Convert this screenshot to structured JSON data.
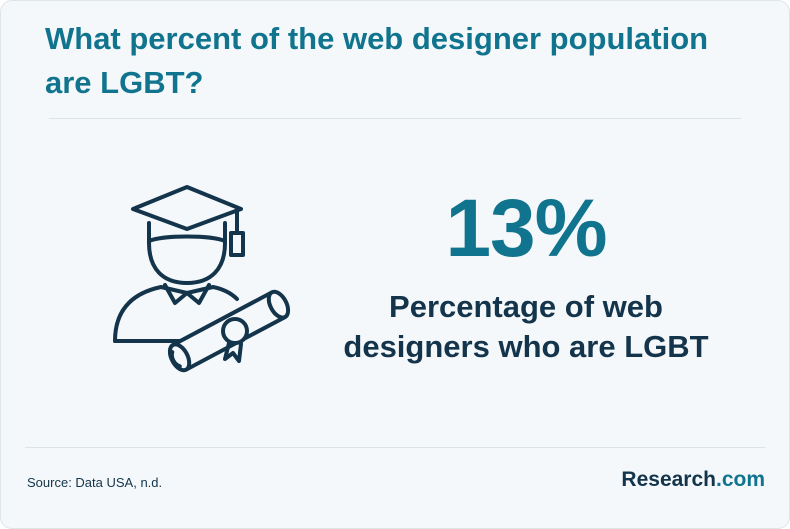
{
  "header": {
    "title": "What percent of the web designer population are LGBT?"
  },
  "stat": {
    "value": "13%",
    "label": "Percentage of web designers who are LGBT"
  },
  "illustration": {
    "icon": "graduate-with-diploma-icon"
  },
  "footer": {
    "source": "Source: Data USA, n.d.",
    "brand_name": "Research",
    "brand_tld": ".com"
  },
  "colors": {
    "accent": "#11748e",
    "dark": "#13344a",
    "background": "#f4f8fa"
  }
}
